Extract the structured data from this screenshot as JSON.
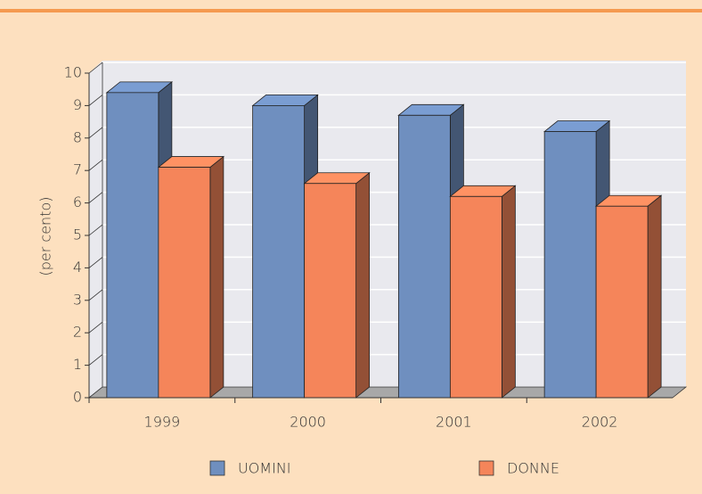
{
  "chart_data": {
    "type": "bar3d",
    "y_label": "(per cento)",
    "categories": [
      "1999",
      "2000",
      "2001",
      "2002"
    ],
    "series": [
      {
        "name": "UOMINI",
        "color": "#6f8fbf",
        "values": [
          9.4,
          9.0,
          8.7,
          8.2
        ]
      },
      {
        "name": "DONNE",
        "color": "#f5855a",
        "values": [
          7.1,
          6.6,
          6.2,
          5.9
        ]
      }
    ],
    "ylim": [
      0,
      10
    ],
    "yticks": [
      0,
      1,
      2,
      3,
      4,
      5,
      6,
      7,
      8,
      9,
      10
    ],
    "grid": true,
    "legend": "bottom"
  }
}
